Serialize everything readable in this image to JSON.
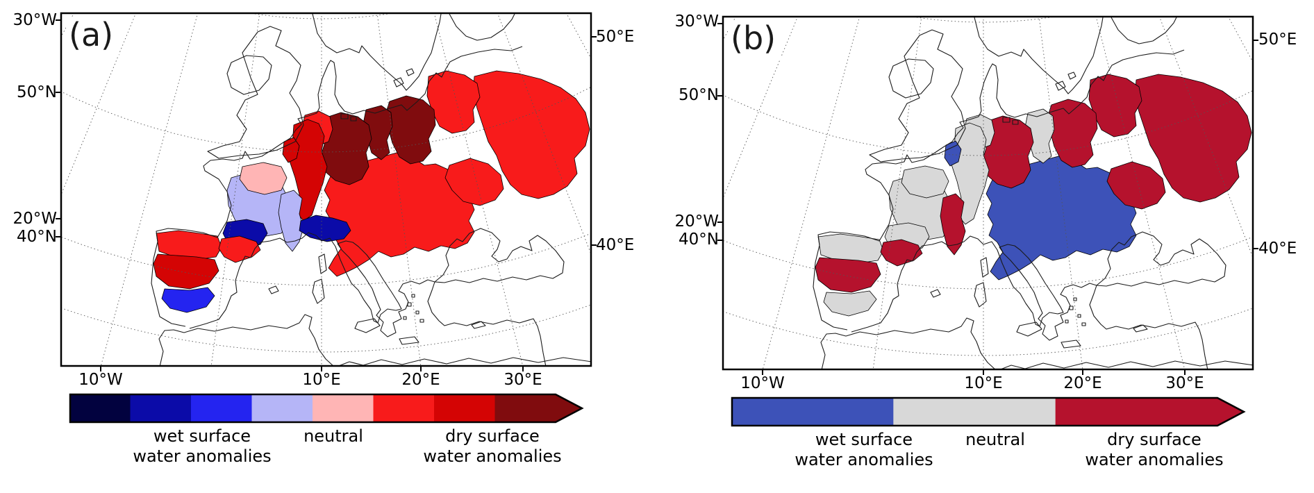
{
  "figure": {
    "background": "#ffffff"
  },
  "panels": {
    "a": {
      "label": "(a)",
      "left_ticks": [
        "30°W",
        "50°N",
        "20°W",
        "40°N"
      ],
      "right_ticks": [
        "50°E",
        "40°E"
      ],
      "bottom_ticks": [
        "10°W",
        "10°E",
        "20°E",
        "30°E"
      ],
      "colorbar": {
        "segments": [
          "#02023f",
          "#0b0ba8",
          "#2424f0",
          "#b5b5f7",
          "#ffb5b5",
          "#f81b1b",
          "#d40404",
          "#800c0e"
        ],
        "arrow_direction": "right",
        "labels": [
          "wet surface\nwater anomalies",
          "neutral",
          "dry surface\nwater anomalies"
        ]
      }
    },
    "b": {
      "label": "(b)",
      "left_ticks": [
        "30°W",
        "50°N",
        "20°W",
        "40°N"
      ],
      "right_ticks": [
        "50°E",
        "40°E"
      ],
      "bottom_ticks": [
        "10°W",
        "10°E",
        "20°E",
        "30°E"
      ],
      "colorbar": {
        "segments": [
          "#3d52b8",
          "#d8d8d8",
          "#b5122d"
        ],
        "arrow_direction": "right",
        "labels": [
          "wet surface\nwater anomalies",
          "neutral",
          "dry surface\nwater anomalies"
        ]
      }
    }
  },
  "map": {
    "palette": {
      "a_wet3": "#02023f",
      "a_wet2": "#0b0ba8",
      "a_wet1": "#2424f0",
      "a_neutral_wet": "#b5b5f7",
      "a_neutral_dry": "#ffb5b5",
      "a_dry1": "#f81b1b",
      "a_dry2": "#d40404",
      "a_dry3": "#800c0e",
      "b_wet": "#3d52b8",
      "b_neutral": "#d8d8d8",
      "b_dry": "#b5122d"
    },
    "basins": [
      {
        "id": "danube",
        "a": "a_dry1",
        "b": "b_wet"
      },
      {
        "id": "dnieper-east",
        "a": "a_dry1",
        "b": "b_dry"
      },
      {
        "id": "dniester",
        "a": "a_dry1",
        "b": "b_dry"
      },
      {
        "id": "neman-daugava",
        "a": "a_dry1",
        "b": "b_dry"
      },
      {
        "id": "vistula",
        "a": "a_dry3",
        "b": "b_dry"
      },
      {
        "id": "oder",
        "a": "a_dry3",
        "b": "b_neutral"
      },
      {
        "id": "elbe",
        "a": "a_dry3",
        "b": "b_dry"
      },
      {
        "id": "weser-ems",
        "a": "a_dry1",
        "b": "b_neutral"
      },
      {
        "id": "rhine",
        "a": "a_dry2",
        "b": "b_neutral"
      },
      {
        "id": "meuse",
        "a": "a_dry2",
        "b": "b_wet"
      },
      {
        "id": "loire",
        "a": "a_neutral_wet",
        "b": "b_neutral"
      },
      {
        "id": "seine",
        "a": "a_neutral_dry",
        "b": "b_neutral"
      },
      {
        "id": "rhone",
        "a": "a_neutral_wet",
        "b": "b_dry"
      },
      {
        "id": "garonne",
        "a": "a_wet2",
        "b": "b_neutral"
      },
      {
        "id": "po",
        "a": "a_wet2",
        "b": "none"
      },
      {
        "id": "douro",
        "a": "a_dry1",
        "b": "b_neutral"
      },
      {
        "id": "ebro",
        "a": "a_dry1",
        "b": "b_dry"
      },
      {
        "id": "tagus",
        "a": "a_dry2",
        "b": "b_dry"
      },
      {
        "id": "guadalquivir",
        "a": "a_wet1",
        "b": "b_neutral"
      }
    ]
  }
}
